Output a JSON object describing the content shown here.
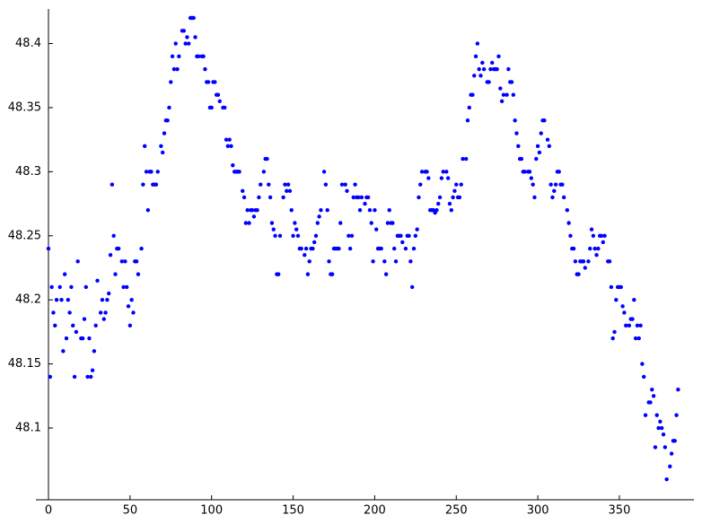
{
  "chart_data": {
    "type": "scatter",
    "color": "#0000ff",
    "xlim": [
      -7.7,
      395.7
    ],
    "ylim": [
      48.044,
      48.427
    ],
    "xticks": [
      0,
      50,
      100,
      150,
      200,
      250,
      300,
      350
    ],
    "yticks": [
      48.1,
      48.15,
      48.2,
      48.25,
      48.3,
      48.35,
      48.4
    ],
    "x": [
      0,
      1,
      2,
      3,
      4,
      5,
      7,
      8,
      9,
      10,
      11,
      12,
      13,
      14,
      15,
      16,
      17,
      18,
      20,
      21,
      22,
      23,
      24,
      25,
      26,
      27,
      28,
      29,
      30,
      32,
      33,
      34,
      35,
      36,
      37,
      38,
      39,
      40,
      41,
      42,
      43,
      45,
      46,
      47,
      48,
      49,
      50,
      51,
      52,
      53,
      54,
      55,
      57,
      58,
      59,
      60,
      61,
      62,
      63,
      64,
      65,
      66,
      67,
      69,
      70,
      71,
      72,
      73,
      74,
      75,
      76,
      77,
      78,
      79,
      80,
      82,
      83,
      84,
      85,
      86,
      87,
      88,
      89,
      90,
      91,
      92,
      94,
      95,
      96,
      97,
      98,
      99,
      100,
      101,
      102,
      103,
      104,
      105,
      107,
      108,
      109,
      110,
      111,
      112,
      113,
      114,
      115,
      116,
      117,
      119,
      120,
      121,
      122,
      123,
      124,
      125,
      126,
      127,
      128,
      129,
      130,
      132,
      133,
      134,
      135,
      136,
      137,
      138,
      139,
      140,
      141,
      142,
      144,
      145,
      146,
      147,
      148,
      149,
      150,
      151,
      152,
      153,
      154,
      155,
      157,
      158,
      159,
      160,
      161,
      162,
      163,
      164,
      165,
      166,
      167,
      169,
      170,
      171,
      172,
      173,
      174,
      175,
      176,
      177,
      178,
      179,
      180,
      182,
      183,
      184,
      185,
      186,
      187,
      188,
      189,
      190,
      191,
      192,
      194,
      195,
      196,
      197,
      198,
      199,
      200,
      201,
      202,
      203,
      204,
      206,
      207,
      208,
      209,
      210,
      211,
      212,
      213,
      214,
      215,
      216,
      217,
      219,
      220,
      221,
      222,
      223,
      224,
      225,
      226,
      227,
      228,
      229,
      231,
      232,
      233,
      234,
      235,
      236,
      237,
      238,
      239,
      240,
      241,
      242,
      244,
      245,
      246,
      247,
      248,
      249,
      250,
      251,
      252,
      253,
      254,
      256,
      257,
      258,
      259,
      260,
      261,
      262,
      263,
      264,
      265,
      266,
      267,
      269,
      270,
      271,
      272,
      273,
      274,
      275,
      276,
      277,
      278,
      279,
      281,
      282,
      283,
      284,
      285,
      286,
      287,
      288,
      289,
      290,
      291,
      292,
      294,
      295,
      296,
      297,
      298,
      299,
      300,
      301,
      302,
      303,
      304,
      306,
      307,
      308,
      309,
      310,
      311,
      312,
      313,
      314,
      315,
      316,
      318,
      319,
      320,
      321,
      322,
      323,
      324,
      325,
      326,
      327,
      328,
      329,
      331,
      332,
      333,
      334,
      335,
      336,
      337,
      338,
      339,
      340,
      341,
      343,
      344,
      345,
      346,
      347,
      348,
      349,
      350,
      351,
      352,
      353,
      354,
      356,
      357,
      358,
      359,
      360,
      361,
      362,
      363,
      364,
      365,
      366,
      368,
      369,
      370,
      371,
      372,
      373,
      374,
      375,
      376,
      377,
      378,
      379,
      381,
      382,
      383,
      384,
      385,
      386
    ],
    "values": [
      48.24,
      48.14,
      48.21,
      48.19,
      48.18,
      48.2,
      48.21,
      48.2,
      48.16,
      48.22,
      48.17,
      48.2,
      48.19,
      48.21,
      48.18,
      48.14,
      48.175,
      48.23,
      48.17,
      48.17,
      48.185,
      48.21,
      48.14,
      48.17,
      48.14,
      48.145,
      48.16,
      48.18,
      48.215,
      48.19,
      48.2,
      48.185,
      48.19,
      48.2,
      48.205,
      48.235,
      48.29,
      48.25,
      48.22,
      48.24,
      48.24,
      48.23,
      48.21,
      48.23,
      48.21,
      48.195,
      48.18,
      48.2,
      48.19,
      48.23,
      48.23,
      48.22,
      48.24,
      48.29,
      48.32,
      48.3,
      48.27,
      48.3,
      48.3,
      48.29,
      48.29,
      48.29,
      48.3,
      48.32,
      48.315,
      48.33,
      48.34,
      48.34,
      48.35,
      48.37,
      48.39,
      48.38,
      48.4,
      48.38,
      48.39,
      48.41,
      48.41,
      48.4,
      48.405,
      48.4,
      48.42,
      48.42,
      48.42,
      48.405,
      48.39,
      48.39,
      48.39,
      48.39,
      48.38,
      48.37,
      48.37,
      48.35,
      48.35,
      48.37,
      48.37,
      48.36,
      48.36,
      48.355,
      48.35,
      48.35,
      48.325,
      48.32,
      48.325,
      48.32,
      48.305,
      48.3,
      48.3,
      48.3,
      48.3,
      48.285,
      48.28,
      48.26,
      48.27,
      48.26,
      48.27,
      48.27,
      48.265,
      48.27,
      48.27,
      48.28,
      48.29,
      48.3,
      48.31,
      48.31,
      48.29,
      48.28,
      48.26,
      48.255,
      48.25,
      48.22,
      48.22,
      48.25,
      48.28,
      48.29,
      48.285,
      48.29,
      48.285,
      48.27,
      48.25,
      48.26,
      48.255,
      48.25,
      48.24,
      48.24,
      48.235,
      48.24,
      48.22,
      48.23,
      48.24,
      48.24,
      48.245,
      48.25,
      48.26,
      48.265,
      48.27,
      48.3,
      48.29,
      48.27,
      48.23,
      48.22,
      48.22,
      48.24,
      48.24,
      48.24,
      48.24,
      48.26,
      48.29,
      48.29,
      48.285,
      48.25,
      48.24,
      48.25,
      48.28,
      48.29,
      48.28,
      48.28,
      48.27,
      48.28,
      48.275,
      48.28,
      48.28,
      48.27,
      48.26,
      48.23,
      48.27,
      48.255,
      48.24,
      48.24,
      48.24,
      48.23,
      48.22,
      48.26,
      48.27,
      48.26,
      48.26,
      48.24,
      48.23,
      48.25,
      48.25,
      48.25,
      48.245,
      48.24,
      48.25,
      48.25,
      48.23,
      48.21,
      48.24,
      48.25,
      48.255,
      48.28,
      48.29,
      48.3,
      48.3,
      48.3,
      48.295,
      48.27,
      48.27,
      48.27,
      48.268,
      48.27,
      48.275,
      48.28,
      48.295,
      48.3,
      48.3,
      48.295,
      48.275,
      48.27,
      48.28,
      48.285,
      48.29,
      48.28,
      48.28,
      48.29,
      48.31,
      48.31,
      48.34,
      48.35,
      48.36,
      48.36,
      48.375,
      48.39,
      48.4,
      48.38,
      48.375,
      48.385,
      48.38,
      48.37,
      48.37,
      48.38,
      48.385,
      48.38,
      48.38,
      48.38,
      48.39,
      48.365,
      48.355,
      48.36,
      48.36,
      48.38,
      48.37,
      48.37,
      48.36,
      48.34,
      48.33,
      48.32,
      48.31,
      48.31,
      48.3,
      48.3,
      48.3,
      48.3,
      48.295,
      48.29,
      48.28,
      48.31,
      48.32,
      48.315,
      48.33,
      48.34,
      48.34,
      48.325,
      48.32,
      48.29,
      48.28,
      48.285,
      48.29,
      48.3,
      48.3,
      48.29,
      48.29,
      48.28,
      48.27,
      48.26,
      48.25,
      48.24,
      48.24,
      48.23,
      48.22,
      48.22,
      48.23,
      48.23,
      48.23,
      48.225,
      48.23,
      48.24,
      48.255,
      48.25,
      48.24,
      48.235,
      48.24,
      48.25,
      48.25,
      48.245,
      48.25,
      48.23,
      48.23,
      48.21,
      48.17,
      48.175,
      48.2,
      48.21,
      48.21,
      48.21,
      48.195,
      48.19,
      48.18,
      48.18,
      48.185,
      48.185,
      48.2,
      48.17,
      48.18,
      48.17,
      48.18,
      48.15,
      48.14,
      48.11,
      48.12,
      48.12,
      48.13,
      48.125,
      48.085,
      48.11,
      48.1,
      48.105,
      48.1,
      48.095,
      48.085,
      48.06,
      48.07,
      48.08,
      48.09,
      48.09,
      48.11,
      48.13
    ]
  }
}
